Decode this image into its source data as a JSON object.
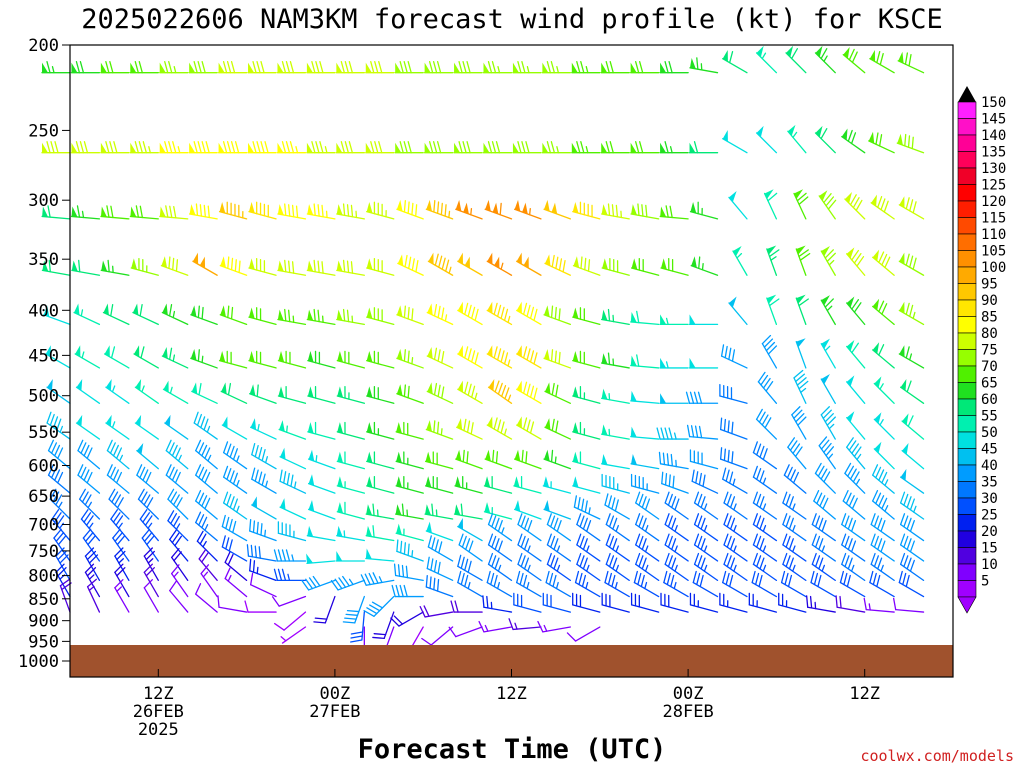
{
  "title": "2025022606 NAM3KM forecast wind profile (kt) for KSCE",
  "xlabel": "Forecast Time (UTC)",
  "credit": "coolwx.com/models",
  "y_ticks": [
    "200",
    "250",
    "300",
    "350",
    "400",
    "450",
    "500",
    "550",
    "600",
    "650",
    "700",
    "750",
    "800",
    "850",
    "900",
    "950",
    "1000"
  ],
  "x_ticks": [
    {
      "t": 6,
      "lines": [
        "12Z",
        "26FEB",
        "2025"
      ]
    },
    {
      "t": 18,
      "lines": [
        "00Z",
        "27FEB"
      ]
    },
    {
      "t": 30,
      "lines": [
        "12Z"
      ]
    },
    {
      "t": 42,
      "lines": [
        "00Z",
        "28FEB"
      ]
    },
    {
      "t": 54,
      "lines": [
        "12Z"
      ]
    }
  ],
  "colorbar": {
    "labels": [
      "150",
      "145",
      "140",
      "135",
      "130",
      "125",
      "120",
      "115",
      "110",
      "105",
      "100",
      "95",
      "90",
      "85",
      "80",
      "75",
      "70",
      "65",
      "60",
      "55",
      "50",
      "45",
      "40",
      "35",
      "30",
      "25",
      "20",
      "15",
      "10",
      "5"
    ],
    "colors": [
      "#ff20ff",
      "#ff10c8",
      "#ff0096",
      "#ff005a",
      "#f00028",
      "#ff0000",
      "#ff1e00",
      "#ff4a00",
      "#ff6e00",
      "#ff9000",
      "#ffaa00",
      "#ffc800",
      "#ffe600",
      "#ffff00",
      "#ccff00",
      "#96ff00",
      "#50f000",
      "#20e020",
      "#00e878",
      "#00f0b0",
      "#00e0e0",
      "#00c0f0",
      "#009cff",
      "#0078ff",
      "#0050ff",
      "#0020f0",
      "#2000e0",
      "#5000e0",
      "#8000ff",
      "#a000ff"
    ]
  },
  "chart_data": {
    "type": "wind_barb_time_height",
    "title": "2025022606 NAM3KM forecast wind profile (kt) for KSCE",
    "xlabel": "Forecast Time (UTC)",
    "ylabel": "",
    "x_unit": "forecast hour from 2025-02-26 06Z",
    "x_range": [
      0,
      60
    ],
    "y_unit": "hPa",
    "ylim": [
      1000,
      200
    ],
    "levels": [
      215,
      265,
      315,
      365,
      415,
      465,
      510,
      560,
      605,
      645,
      690,
      730,
      770,
      810,
      845,
      880,
      915
    ],
    "times": [
      0,
      2,
      4,
      6,
      8,
      10,
      12,
      14,
      16,
      18,
      20,
      22,
      24,
      26,
      28,
      30,
      32,
      34,
      36,
      38,
      40,
      42,
      44,
      46,
      48,
      50,
      52,
      54,
      56,
      58,
      60
    ],
    "speed_kt_by_level": [
      [
        65,
        68,
        70,
        72,
        75,
        78,
        80,
        82,
        82,
        80,
        80,
        80,
        78,
        78,
        78,
        76,
        76,
        75,
        74,
        72,
        70,
        68,
        66,
        62,
        55,
        60,
        65,
        70,
        72,
        70,
        78
      ],
      [
        80,
        82,
        82,
        84,
        86,
        88,
        88,
        88,
        86,
        84,
        82,
        80,
        78,
        78,
        78,
        78,
        78,
        76,
        74,
        72,
        70,
        66,
        60,
        50,
        52,
        55,
        60,
        68,
        72,
        78,
        84
      ],
      [
        62,
        65,
        70,
        72,
        80,
        88,
        95,
        92,
        88,
        86,
        84,
        84,
        88,
        95,
        105,
        108,
        106,
        98,
        92,
        84,
        78,
        72,
        66,
        50,
        58,
        72,
        78,
        80,
        82,
        80,
        85
      ],
      [
        60,
        62,
        65,
        75,
        80,
        102,
        88,
        82,
        82,
        80,
        80,
        82,
        88,
        95,
        98,
        105,
        102,
        90,
        82,
        78,
        72,
        70,
        66,
        55,
        64,
        72,
        76,
        80,
        82,
        78,
        80
      ],
      [
        52,
        56,
        60,
        62,
        65,
        68,
        72,
        72,
        74,
        74,
        76,
        78,
        82,
        85,
        88,
        94,
        88,
        78,
        70,
        64,
        58,
        56,
        52,
        48,
        58,
        62,
        66,
        68,
        72,
        75,
        78
      ],
      [
        50,
        55,
        58,
        62,
        64,
        66,
        70,
        70,
        70,
        68,
        70,
        72,
        76,
        82,
        88,
        94,
        90,
        80,
        72,
        66,
        58,
        54,
        50,
        40,
        42,
        48,
        54,
        58,
        62,
        66,
        70
      ],
      [
        48,
        52,
        54,
        56,
        56,
        58,
        60,
        62,
        62,
        60,
        64,
        68,
        72,
        78,
        84,
        96,
        88,
        72,
        64,
        56,
        52,
        48,
        42,
        38,
        42,
        45,
        48,
        52,
        56,
        60,
        64
      ],
      [
        45,
        50,
        54,
        52,
        48,
        46,
        50,
        54,
        56,
        58,
        62,
        66,
        72,
        76,
        80,
        84,
        80,
        72,
        64,
        56,
        50,
        46,
        40,
        38,
        40,
        42,
        46,
        50,
        54,
        58,
        60
      ],
      [
        40,
        42,
        46,
        48,
        46,
        44,
        44,
        46,
        50,
        54,
        58,
        62,
        66,
        70,
        72,
        72,
        70,
        66,
        58,
        52,
        48,
        44,
        40,
        38,
        38,
        40,
        44,
        46,
        50,
        52,
        54
      ],
      [
        38,
        40,
        42,
        42,
        42,
        42,
        44,
        44,
        46,
        50,
        56,
        62,
        66,
        68,
        66,
        62,
        58,
        54,
        50,
        46,
        44,
        42,
        38,
        36,
        36,
        38,
        42,
        44,
        46,
        48,
        50
      ],
      [
        36,
        36,
        38,
        38,
        40,
        42,
        46,
        48,
        50,
        52,
        58,
        64,
        66,
        64,
        60,
        56,
        52,
        48,
        44,
        42,
        40,
        38,
        36,
        35,
        35,
        36,
        40,
        42,
        44,
        46,
        46
      ],
      [
        34,
        34,
        34,
        34,
        34,
        36,
        40,
        44,
        46,
        50,
        54,
        58,
        56,
        52,
        48,
        44,
        42,
        40,
        38,
        36,
        35,
        34,
        34,
        34,
        34,
        35,
        38,
        40,
        42,
        42,
        44
      ],
      [
        32,
        32,
        30,
        30,
        28,
        26,
        32,
        38,
        44,
        50,
        52,
        50,
        46,
        42,
        40,
        38,
        36,
        35,
        34,
        34,
        34,
        34,
        34,
        34,
        34,
        34,
        36,
        38,
        40,
        40,
        42
      ],
      [
        30,
        28,
        26,
        24,
        22,
        18,
        20,
        26,
        34,
        40,
        44,
        44,
        42,
        40,
        38,
        36,
        36,
        34,
        34,
        34,
        33,
        33,
        33,
        33,
        34,
        34,
        34,
        36,
        36,
        38,
        40
      ],
      [
        26,
        24,
        20,
        18,
        14,
        14,
        14,
        12,
        10,
        22,
        40,
        42,
        40,
        38,
        36,
        36,
        35,
        35,
        34,
        34,
        33,
        33,
        32,
        32,
        32,
        32,
        32,
        32,
        32,
        30,
        30
      ],
      [
        18,
        16,
        14,
        12,
        10,
        10,
        10,
        8,
        8,
        0,
        30,
        22,
        20,
        18,
        18,
        26,
        30,
        30,
        28,
        28,
        28,
        28,
        27,
        27,
        27,
        26,
        24,
        18,
        14,
        12,
        12
      ],
      [
        0,
        0,
        0,
        0,
        0,
        0,
        0,
        0,
        6,
        0,
        12,
        10,
        8,
        10,
        12,
        14,
        16,
        14,
        10,
        0,
        0,
        0,
        0,
        0,
        0,
        0,
        0,
        0,
        0,
        0,
        0
      ]
    ],
    "dir_deg_by_level": [
      [
        270,
        270,
        270,
        270,
        270,
        270,
        270,
        270,
        270,
        270,
        270,
        270,
        270,
        270,
        270,
        270,
        270,
        270,
        270,
        270,
        270,
        270,
        280,
        300,
        315,
        315,
        315,
        310,
        300,
        295,
        290
      ],
      [
        270,
        270,
        270,
        270,
        270,
        270,
        270,
        270,
        270,
        270,
        270,
        270,
        270,
        270,
        270,
        270,
        270,
        270,
        270,
        270,
        270,
        270,
        270,
        300,
        315,
        320,
        315,
        305,
        295,
        290,
        285
      ],
      [
        275,
        275,
        275,
        275,
        275,
        280,
        285,
        285,
        280,
        280,
        280,
        285,
        290,
        290,
        290,
        290,
        290,
        290,
        285,
        280,
        280,
        275,
        285,
        320,
        335,
        335,
        325,
        315,
        305,
        300,
        290
      ],
      [
        280,
        280,
        280,
        285,
        290,
        300,
        290,
        285,
        280,
        280,
        280,
        285,
        295,
        300,
        300,
        300,
        300,
        295,
        290,
        285,
        285,
        285,
        290,
        330,
        340,
        340,
        330,
        320,
        310,
        300,
        290
      ],
      [
        290,
        295,
        295,
        295,
        295,
        290,
        290,
        285,
        280,
        280,
        280,
        285,
        290,
        295,
        300,
        300,
        300,
        290,
        285,
        280,
        275,
        270,
        270,
        320,
        340,
        340,
        330,
        320,
        310,
        300,
        295
      ],
      [
        300,
        300,
        300,
        300,
        295,
        290,
        285,
        285,
        285,
        285,
        285,
        285,
        290,
        295,
        300,
        300,
        300,
        290,
        285,
        280,
        275,
        270,
        270,
        295,
        330,
        340,
        330,
        320,
        310,
        300,
        295
      ],
      [
        305,
        305,
        305,
        305,
        300,
        295,
        295,
        290,
        285,
        285,
        285,
        285,
        290,
        295,
        300,
        305,
        300,
        295,
        285,
        280,
        275,
        270,
        270,
        285,
        320,
        335,
        330,
        320,
        315,
        305,
        300
      ],
      [
        305,
        305,
        305,
        305,
        305,
        305,
        300,
        295,
        290,
        285,
        285,
        285,
        285,
        290,
        295,
        300,
        300,
        295,
        285,
        280,
        275,
        270,
        275,
        290,
        315,
        330,
        330,
        320,
        315,
        310,
        305
      ],
      [
        310,
        310,
        310,
        310,
        310,
        310,
        305,
        300,
        295,
        290,
        285,
        285,
        285,
        285,
        290,
        290,
        290,
        290,
        285,
        280,
        280,
        280,
        285,
        290,
        305,
        320,
        325,
        320,
        315,
        310,
        305
      ],
      [
        310,
        310,
        310,
        310,
        310,
        310,
        305,
        300,
        295,
        290,
        285,
        285,
        285,
        285,
        285,
        285,
        285,
        285,
        285,
        285,
        285,
        290,
        295,
        300,
        305,
        310,
        315,
        315,
        310,
        305,
        300
      ],
      [
        315,
        315,
        315,
        315,
        315,
        310,
        305,
        300,
        295,
        290,
        285,
        280,
        280,
        280,
        280,
        285,
        290,
        290,
        295,
        300,
        305,
        305,
        305,
        305,
        305,
        305,
        310,
        310,
        310,
        305,
        300
      ],
      [
        320,
        320,
        320,
        320,
        315,
        310,
        300,
        290,
        285,
        280,
        280,
        280,
        285,
        290,
        300,
        305,
        305,
        305,
        305,
        305,
        305,
        305,
        305,
        305,
        305,
        305,
        305,
        305,
        305,
        305,
        300
      ],
      [
        325,
        325,
        325,
        325,
        320,
        315,
        300,
        280,
        270,
        265,
        270,
        275,
        290,
        300,
        305,
        305,
        305,
        305,
        305,
        305,
        305,
        305,
        305,
        305,
        305,
        305,
        305,
        305,
        305,
        305,
        300
      ],
      [
        330,
        330,
        330,
        330,
        325,
        320,
        310,
        290,
        270,
        250,
        250,
        260,
        280,
        295,
        300,
        305,
        305,
        305,
        305,
        305,
        305,
        305,
        305,
        305,
        305,
        305,
        305,
        305,
        305,
        305,
        300
      ],
      [
        330,
        330,
        330,
        330,
        325,
        325,
        310,
        295,
        250,
        200,
        200,
        225,
        270,
        290,
        300,
        300,
        300,
        300,
        300,
        300,
        300,
        300,
        300,
        300,
        300,
        300,
        300,
        300,
        300,
        300,
        300
      ],
      [
        340,
        335,
        330,
        330,
        320,
        310,
        280,
        270,
        230,
        0,
        185,
        200,
        240,
        260,
        270,
        280,
        285,
        285,
        285,
        285,
        285,
        285,
        285,
        285,
        285,
        285,
        280,
        280,
        275,
        275,
        270
      ],
      [
        0,
        0,
        0,
        0,
        0,
        0,
        0,
        0,
        235,
        0,
        180,
        200,
        210,
        230,
        250,
        260,
        265,
        260,
        240,
        0,
        0,
        0,
        0,
        0,
        0,
        0,
        0,
        0,
        0,
        0,
        0
      ]
    ],
    "surface_pressure_hpa": 980,
    "speed_unit": "kt"
  }
}
